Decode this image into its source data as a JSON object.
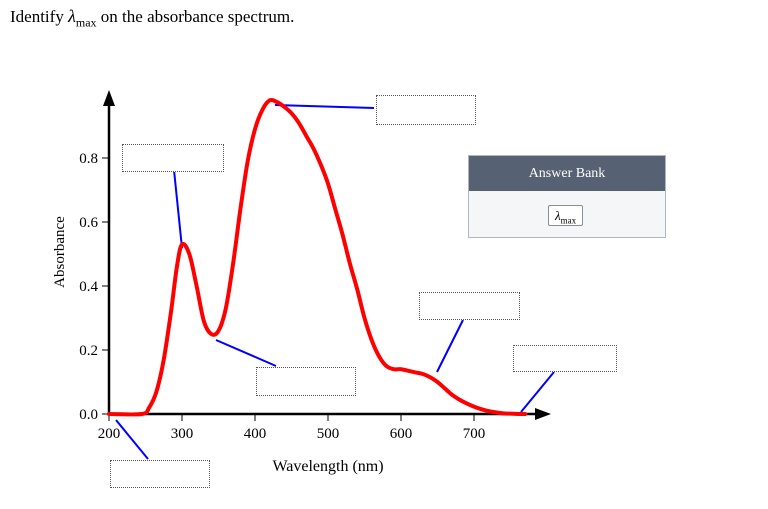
{
  "prompt": {
    "prefix": "Identify ",
    "symbol": "λ",
    "subscript": "max",
    "suffix": " on the absorbance spectrum."
  },
  "answer_bank": {
    "title": "Answer Bank",
    "items": [
      {
        "symbol": "λ",
        "subscript": "max"
      }
    ]
  },
  "drop_zone_count": 6,
  "colors": {
    "curve": "#ff0000",
    "leader": "#0000ff",
    "axis": "#000000",
    "bank_header": "#566173"
  },
  "chart_data": {
    "type": "line",
    "xlabel": "Wavelength (nm)",
    "ylabel": "Absorbance",
    "xlim": [
      200,
      780
    ],
    "ylim": [
      0,
      0.96
    ],
    "xticks": [
      200,
      300,
      400,
      500,
      600,
      700
    ],
    "yticks": [
      0.0,
      0.2,
      0.4,
      0.6,
      0.8
    ],
    "ytick_labels": [
      "0.0",
      "0.2",
      "0.4",
      "0.6",
      "0.8"
    ],
    "grid": false,
    "series": [
      {
        "x": [
          200,
          245,
          255,
          265,
          275,
          285,
          293,
          300,
          310,
          320,
          330,
          340,
          350,
          360,
          370,
          380,
          390,
          400,
          410,
          420,
          430,
          440,
          450,
          460,
          470,
          480,
          490,
          500,
          510,
          520,
          530,
          540,
          550,
          560,
          570,
          580,
          590,
          600,
          610,
          620,
          630,
          640,
          650,
          660,
          670,
          680,
          690,
          700,
          710,
          720,
          730,
          740,
          750,
          760,
          770
        ],
        "y": [
          0.0,
          0.0,
          0.02,
          0.07,
          0.17,
          0.32,
          0.46,
          0.53,
          0.5,
          0.4,
          0.29,
          0.25,
          0.26,
          0.33,
          0.47,
          0.64,
          0.79,
          0.89,
          0.95,
          0.98,
          0.975,
          0.96,
          0.94,
          0.91,
          0.87,
          0.83,
          0.78,
          0.72,
          0.64,
          0.56,
          0.47,
          0.39,
          0.3,
          0.23,
          0.18,
          0.15,
          0.14,
          0.14,
          0.135,
          0.13,
          0.125,
          0.115,
          0.1,
          0.08,
          0.06,
          0.045,
          0.033,
          0.023,
          0.015,
          0.009,
          0.005,
          0.002,
          0.001,
          0.0,
          0.0
        ]
      }
    ]
  }
}
